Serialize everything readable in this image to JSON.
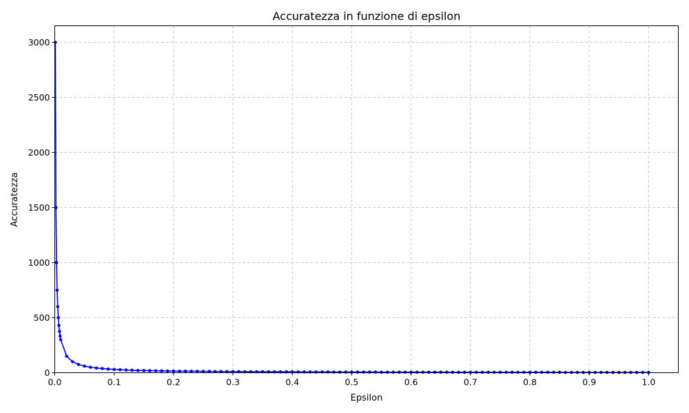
{
  "chart_data": {
    "type": "line",
    "title": "Accuratezza in funzione di epsilon",
    "xlabel": "Epsilon",
    "ylabel": "Accuratezza",
    "xlim": [
      0,
      1.05
    ],
    "ylim": [
      0,
      3150
    ],
    "xticks": [
      0.0,
      0.1,
      0.2,
      0.3,
      0.4,
      0.5,
      0.6,
      0.7,
      0.8,
      0.9,
      1.0
    ],
    "xtick_labels": [
      "0.0",
      "0.1",
      "0.2",
      "0.3",
      "0.4",
      "0.5",
      "0.6",
      "0.7",
      "0.8",
      "0.9",
      "1.0"
    ],
    "yticks": [
      0,
      500,
      1000,
      1500,
      2000,
      2500,
      3000
    ],
    "ytick_labels": [
      "0",
      "500",
      "1000",
      "1500",
      "2000",
      "2500",
      "3000"
    ],
    "grid": true,
    "color": "#0000ff",
    "series": [
      {
        "marker": "circle",
        "x": [
          0.001,
          0.002,
          0.003,
          0.004,
          0.005,
          0.006,
          0.007,
          0.008,
          0.009,
          0.01,
          0.02,
          0.03,
          0.04,
          0.05,
          0.06,
          0.07,
          0.08,
          0.09,
          0.1,
          0.11,
          0.12,
          0.13,
          0.14,
          0.15,
          0.16,
          0.17,
          0.18,
          0.19,
          0.2,
          0.21,
          0.22,
          0.23,
          0.24,
          0.25,
          0.26,
          0.27,
          0.28,
          0.29,
          0.3,
          0.31,
          0.32,
          0.33,
          0.34,
          0.35,
          0.36,
          0.37,
          0.38,
          0.39,
          0.4,
          0.41,
          0.42,
          0.43,
          0.44,
          0.45,
          0.46,
          0.47,
          0.48,
          0.49,
          0.5,
          0.51,
          0.52,
          0.53,
          0.54,
          0.55,
          0.56,
          0.57,
          0.58,
          0.59,
          0.6,
          0.61,
          0.62,
          0.63,
          0.64,
          0.65,
          0.66,
          0.67,
          0.68,
          0.69,
          0.7,
          0.71,
          0.72,
          0.73,
          0.74,
          0.75,
          0.76,
          0.77,
          0.78,
          0.79,
          0.8,
          0.81,
          0.82,
          0.83,
          0.84,
          0.85,
          0.86,
          0.87,
          0.88,
          0.89,
          0.9,
          0.91,
          0.92,
          0.93,
          0.94,
          0.95,
          0.96,
          0.97,
          0.98,
          0.99,
          1.0
        ],
        "y": [
          3000,
          1500,
          1000,
          750,
          600,
          500,
          429,
          375,
          333,
          300,
          150,
          100,
          75,
          60,
          50,
          43,
          38,
          33,
          30,
          27,
          25,
          23,
          21,
          20,
          19,
          18,
          17,
          16,
          15,
          14,
          14,
          13,
          13,
          12,
          12,
          11,
          11,
          10,
          10,
          10,
          9,
          9,
          9,
          9,
          8,
          8,
          8,
          8,
          8,
          7,
          7,
          7,
          7,
          7,
          7,
          6,
          6,
          6,
          6,
          6,
          6,
          6,
          6,
          5,
          5,
          5,
          5,
          5,
          5,
          5,
          5,
          5,
          5,
          5,
          5,
          4,
          4,
          4,
          4,
          4,
          4,
          4,
          4,
          4,
          4,
          4,
          4,
          4,
          4,
          4,
          4,
          4,
          4,
          4,
          3,
          3,
          3,
          3,
          3,
          3,
          3,
          3,
          3,
          3,
          3,
          3,
          3,
          3,
          3
        ]
      }
    ]
  }
}
